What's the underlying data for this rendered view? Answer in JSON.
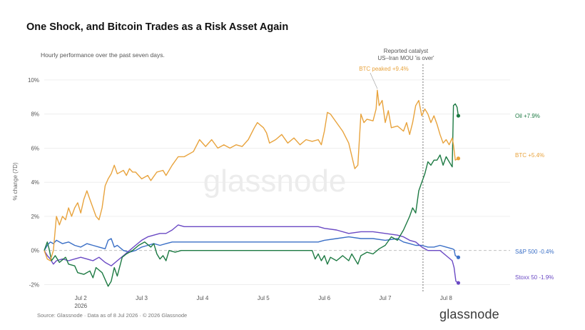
{
  "title": "One Shock, and Bitcoin Trades as a Risk Asset Again",
  "subtitle": "Hourly performance over the past seven days.",
  "footer": "Source: Glassnode · Data as of 8 Jul 2026 · © 2026 Glassnode",
  "logo_text": "glassnode",
  "watermark": "glassnode",
  "colors": {
    "btc": "#e8a33d",
    "oil": "#1d7a43",
    "sp500": "#3a6fc6",
    "stoxx": "#6a49c4"
  },
  "chart_data": {
    "type": "line",
    "ylabel": "% change (7D)",
    "ylim": [
      -2.4,
      10.5
    ],
    "xlim": [
      0,
      7.65
    ],
    "y_ticks": [
      {
        "v": -2,
        "label": "-2%"
      },
      {
        "v": 0,
        "label": "0%"
      },
      {
        "v": 2,
        "label": "2%"
      },
      {
        "v": 4,
        "label": "4%"
      },
      {
        "v": 6,
        "label": "6%"
      },
      {
        "v": 8,
        "label": "8%"
      },
      {
        "v": 10,
        "label": "10%"
      }
    ],
    "x_ticks": [
      {
        "v": 0.6,
        "label": "Jul 2",
        "sub": "2026"
      },
      {
        "v": 1.6,
        "label": "Jul 3"
      },
      {
        "v": 2.6,
        "label": "Jul 4"
      },
      {
        "v": 3.6,
        "label": "Jul 5"
      },
      {
        "v": 4.6,
        "label": "Jul 6"
      },
      {
        "v": 5.6,
        "label": "Jul 7"
      },
      {
        "v": 6.6,
        "label": "Jul 8"
      }
    ],
    "grid": true,
    "annotations": {
      "catalyst_x": 6.22,
      "catalyst_line1": "Reported catalyst",
      "catalyst_line2": "US–Iran MOU 'is over'",
      "btc_peak_label": "BTC peaked +9.4%",
      "btc_peak": {
        "x": 5.47,
        "y": 9.4
      }
    },
    "series": [
      {
        "key": "btc",
        "label": "BTC +5.4%",
        "points": [
          [
            0,
            0
          ],
          [
            0.05,
            -0.5
          ],
          [
            0.1,
            -0.6
          ],
          [
            0.15,
            0
          ],
          [
            0.2,
            2
          ],
          [
            0.25,
            1.5
          ],
          [
            0.3,
            2
          ],
          [
            0.35,
            1.8
          ],
          [
            0.4,
            2.5
          ],
          [
            0.45,
            2.0
          ],
          [
            0.5,
            2.5
          ],
          [
            0.55,
            2.8
          ],
          [
            0.6,
            2.2
          ],
          [
            0.65,
            3
          ],
          [
            0.7,
            3.5
          ],
          [
            0.75,
            3
          ],
          [
            0.8,
            2.5
          ],
          [
            0.85,
            2
          ],
          [
            0.9,
            1.8
          ],
          [
            0.95,
            2.5
          ],
          [
            1.0,
            3.8
          ],
          [
            1.05,
            4.2
          ],
          [
            1.1,
            4.5
          ],
          [
            1.15,
            5
          ],
          [
            1.2,
            4.5
          ],
          [
            1.3,
            4.7
          ],
          [
            1.35,
            4.4
          ],
          [
            1.4,
            4.8
          ],
          [
            1.45,
            4.6
          ],
          [
            1.5,
            4.6
          ],
          [
            1.6,
            4.2
          ],
          [
            1.7,
            4.4
          ],
          [
            1.75,
            4.1
          ],
          [
            1.85,
            4.6
          ],
          [
            1.95,
            4.7
          ],
          [
            2.0,
            4.4
          ],
          [
            2.1,
            5.0
          ],
          [
            2.2,
            5.5
          ],
          [
            2.3,
            5.5
          ],
          [
            2.45,
            5.8
          ],
          [
            2.55,
            6.5
          ],
          [
            2.65,
            6.1
          ],
          [
            2.75,
            6.5
          ],
          [
            2.85,
            6.0
          ],
          [
            2.95,
            6.2
          ],
          [
            3.05,
            6.0
          ],
          [
            3.15,
            6.2
          ],
          [
            3.25,
            6.1
          ],
          [
            3.35,
            6.5
          ],
          [
            3.45,
            7.2
          ],
          [
            3.5,
            7.5
          ],
          [
            3.6,
            7.2
          ],
          [
            3.65,
            6.9
          ],
          [
            3.7,
            6.3
          ],
          [
            3.8,
            6.5
          ],
          [
            3.9,
            6.8
          ],
          [
            4.0,
            6.3
          ],
          [
            4.1,
            6.6
          ],
          [
            4.2,
            6.2
          ],
          [
            4.3,
            6.5
          ],
          [
            4.4,
            6.4
          ],
          [
            4.5,
            6.5
          ],
          [
            4.55,
            6.2
          ],
          [
            4.6,
            7.0
          ],
          [
            4.65,
            8.1
          ],
          [
            4.7,
            8.0
          ],
          [
            4.8,
            7.5
          ],
          [
            4.9,
            7.0
          ],
          [
            5.0,
            6.3
          ],
          [
            5.1,
            4.8
          ],
          [
            5.15,
            5.0
          ],
          [
            5.2,
            8.0
          ],
          [
            5.25,
            7.5
          ],
          [
            5.3,
            7.7
          ],
          [
            5.4,
            7.6
          ],
          [
            5.45,
            8.3
          ],
          [
            5.47,
            9.4
          ],
          [
            5.5,
            8.5
          ],
          [
            5.55,
            8.8
          ],
          [
            5.6,
            7.5
          ],
          [
            5.65,
            8.2
          ],
          [
            5.7,
            7.2
          ],
          [
            5.8,
            7.3
          ],
          [
            5.9,
            7.0
          ],
          [
            5.95,
            7.5
          ],
          [
            6.0,
            6.8
          ],
          [
            6.05,
            7.5
          ],
          [
            6.1,
            8.5
          ],
          [
            6.15,
            8.8
          ],
          [
            6.2,
            7.9
          ],
          [
            6.25,
            8.3
          ],
          [
            6.3,
            8.0
          ],
          [
            6.35,
            7.5
          ],
          [
            6.4,
            7.9
          ],
          [
            6.45,
            7.4
          ],
          [
            6.5,
            6.8
          ],
          [
            6.55,
            6.3
          ],
          [
            6.6,
            6.5
          ],
          [
            6.65,
            6.2
          ],
          [
            6.7,
            6.6
          ],
          [
            6.72,
            6.2
          ],
          [
            6.75,
            5.3
          ],
          [
            6.8,
            5.4
          ]
        ]
      },
      {
        "key": "oil",
        "label": "Oil +7.9%",
        "points": [
          [
            0,
            0
          ],
          [
            0.05,
            0.5
          ],
          [
            0.08,
            0.1
          ],
          [
            0.12,
            -0.6
          ],
          [
            0.18,
            -0.3
          ],
          [
            0.25,
            -0.7
          ],
          [
            0.35,
            -0.4
          ],
          [
            0.4,
            -0.8
          ],
          [
            0.5,
            -0.9
          ],
          [
            0.55,
            -1.3
          ],
          [
            0.65,
            -1.4
          ],
          [
            0.75,
            -1.2
          ],
          [
            0.8,
            -1.6
          ],
          [
            0.85,
            -1.0
          ],
          [
            0.95,
            -1.3
          ],
          [
            1.0,
            -1.7
          ],
          [
            1.05,
            -2.1
          ],
          [
            1.1,
            -1.8
          ],
          [
            1.15,
            -1.0
          ],
          [
            1.2,
            -1.5
          ],
          [
            1.28,
            -0.4
          ],
          [
            1.35,
            -0.2
          ],
          [
            1.45,
            0
          ],
          [
            1.55,
            0.3
          ],
          [
            1.65,
            0.5
          ],
          [
            1.75,
            0.2
          ],
          [
            1.8,
            0.4
          ],
          [
            1.85,
            -0.2
          ],
          [
            1.9,
            -0.5
          ],
          [
            1.95,
            -0.3
          ],
          [
            2.0,
            -0.6
          ],
          [
            2.05,
            0
          ],
          [
            2.15,
            -0.1
          ],
          [
            2.25,
            0
          ],
          [
            2.5,
            0
          ],
          [
            3.0,
            0
          ],
          [
            3.5,
            0
          ],
          [
            4.0,
            0
          ],
          [
            4.4,
            0
          ],
          [
            4.45,
            -0.5
          ],
          [
            4.5,
            -0.2
          ],
          [
            4.55,
            -0.6
          ],
          [
            4.6,
            -0.3
          ],
          [
            4.65,
            -0.8
          ],
          [
            4.7,
            -0.4
          ],
          [
            4.8,
            -0.6
          ],
          [
            4.9,
            -0.3
          ],
          [
            5.0,
            -0.6
          ],
          [
            5.05,
            -0.2
          ],
          [
            5.1,
            -0.5
          ],
          [
            5.15,
            -0.8
          ],
          [
            5.2,
            -0.3
          ],
          [
            5.3,
            -0.1
          ],
          [
            5.4,
            -0.2
          ],
          [
            5.5,
            0.1
          ],
          [
            5.6,
            0.3
          ],
          [
            5.7,
            0.8
          ],
          [
            5.8,
            0.6
          ],
          [
            5.9,
            1.2
          ],
          [
            6.0,
            2.0
          ],
          [
            6.05,
            2.5
          ],
          [
            6.1,
            2.2
          ],
          [
            6.15,
            3.5
          ],
          [
            6.2,
            4.0
          ],
          [
            6.25,
            4.5
          ],
          [
            6.3,
            5.2
          ],
          [
            6.35,
            5.0
          ],
          [
            6.4,
            5.3
          ],
          [
            6.45,
            5.3
          ],
          [
            6.5,
            5.6
          ],
          [
            6.55,
            5.0
          ],
          [
            6.6,
            5.5
          ],
          [
            6.65,
            5.2
          ],
          [
            6.7,
            4.9
          ],
          [
            6.72,
            8.5
          ],
          [
            6.75,
            8.6
          ],
          [
            6.78,
            8.4
          ],
          [
            6.8,
            7.9
          ]
        ]
      },
      {
        "key": "sp500",
        "label": "S&P 500 -0.4%",
        "points": [
          [
            0,
            0
          ],
          [
            0.05,
            0.3
          ],
          [
            0.1,
            0.5
          ],
          [
            0.15,
            0.4
          ],
          [
            0.2,
            0.6
          ],
          [
            0.3,
            0.4
          ],
          [
            0.4,
            0.5
          ],
          [
            0.5,
            0.3
          ],
          [
            0.6,
            0.2
          ],
          [
            0.7,
            0.4
          ],
          [
            0.8,
            0.3
          ],
          [
            0.9,
            0.2
          ],
          [
            1.0,
            0.1
          ],
          [
            1.05,
            0.6
          ],
          [
            1.1,
            0.7
          ],
          [
            1.15,
            0.2
          ],
          [
            1.2,
            0.3
          ],
          [
            1.3,
            0
          ],
          [
            1.4,
            -0.1
          ],
          [
            1.5,
            0
          ],
          [
            1.6,
            0.2
          ],
          [
            1.7,
            0.3
          ],
          [
            1.8,
            0.4
          ],
          [
            1.9,
            0.3
          ],
          [
            2.0,
            0.4
          ],
          [
            2.1,
            0.5
          ],
          [
            2.3,
            0.5
          ],
          [
            3.0,
            0.5
          ],
          [
            3.5,
            0.5
          ],
          [
            4.0,
            0.5
          ],
          [
            4.5,
            0.5
          ],
          [
            4.6,
            0.6
          ],
          [
            4.8,
            0.7
          ],
          [
            5.0,
            0.8
          ],
          [
            5.2,
            0.7
          ],
          [
            5.4,
            0.7
          ],
          [
            5.6,
            0.6
          ],
          [
            5.8,
            0.7
          ],
          [
            5.9,
            0.5
          ],
          [
            6.0,
            0.4
          ],
          [
            6.1,
            0.3
          ],
          [
            6.2,
            0.3
          ],
          [
            6.3,
            0.2
          ],
          [
            6.4,
            0.2
          ],
          [
            6.5,
            0.3
          ],
          [
            6.6,
            0.2
          ],
          [
            6.7,
            0.1
          ],
          [
            6.73,
            0.05
          ],
          [
            6.75,
            -0.3
          ],
          [
            6.8,
            -0.4
          ]
        ]
      },
      {
        "key": "stoxx",
        "label": "Stoxx 50 -1.9%",
        "points": [
          [
            0,
            0
          ],
          [
            0.05,
            -0.3
          ],
          [
            0.1,
            -0.5
          ],
          [
            0.15,
            -0.8
          ],
          [
            0.2,
            -0.6
          ],
          [
            0.3,
            -0.5
          ],
          [
            0.4,
            -0.6
          ],
          [
            0.5,
            -0.5
          ],
          [
            0.6,
            -0.4
          ],
          [
            0.7,
            -0.5
          ],
          [
            0.8,
            -0.6
          ],
          [
            0.9,
            -0.4
          ],
          [
            1.0,
            -0.7
          ],
          [
            1.1,
            -0.9
          ],
          [
            1.2,
            -0.6
          ],
          [
            1.3,
            -0.3
          ],
          [
            1.4,
            0
          ],
          [
            1.5,
            0.3
          ],
          [
            1.6,
            0.6
          ],
          [
            1.7,
            0.8
          ],
          [
            1.8,
            0.9
          ],
          [
            1.9,
            1.0
          ],
          [
            2.0,
            1.0
          ],
          [
            2.1,
            1.2
          ],
          [
            2.2,
            1.5
          ],
          [
            2.3,
            1.4
          ],
          [
            3.0,
            1.4
          ],
          [
            4.0,
            1.4
          ],
          [
            4.5,
            1.4
          ],
          [
            4.6,
            1.3
          ],
          [
            4.8,
            1.2
          ],
          [
            5.0,
            1.0
          ],
          [
            5.2,
            1.1
          ],
          [
            5.4,
            1.1
          ],
          [
            5.6,
            1.0
          ],
          [
            5.8,
            0.9
          ],
          [
            5.9,
            0.8
          ],
          [
            6.0,
            0.6
          ],
          [
            6.1,
            0.5
          ],
          [
            6.2,
            0.2
          ],
          [
            6.3,
            0
          ],
          [
            6.4,
            0
          ],
          [
            6.5,
            0
          ],
          [
            6.6,
            -0.3
          ],
          [
            6.7,
            -0.6
          ],
          [
            6.73,
            -1.0
          ],
          [
            6.76,
            -1.8
          ],
          [
            6.8,
            -1.9
          ]
        ]
      }
    ]
  }
}
